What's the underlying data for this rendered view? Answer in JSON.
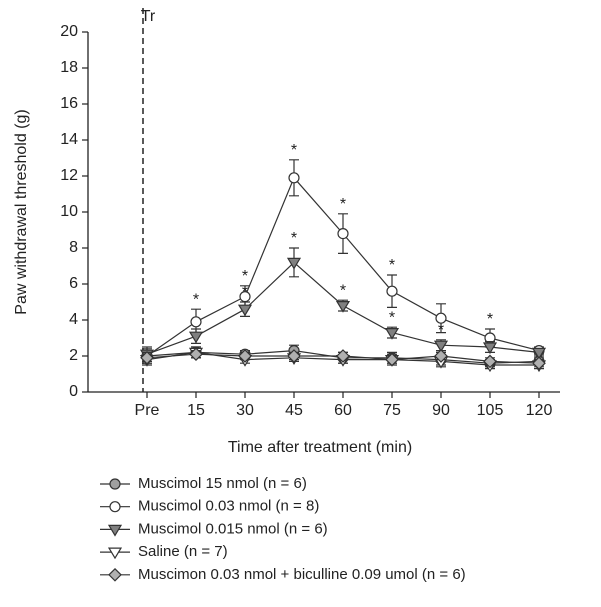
{
  "chart_data": {
    "type": "line",
    "y_label": "Paw withdrawal threshold (g)",
    "x_label": "Time after treatment (min)",
    "annotation": "Tr",
    "categories": [
      "Pre",
      "15",
      "30",
      "45",
      "60",
      "75",
      "90",
      "105",
      "120"
    ],
    "ylim": [
      0,
      20
    ],
    "yticks": [
      0,
      2,
      4,
      6,
      8,
      10,
      12,
      14,
      16,
      18,
      20
    ],
    "series": [
      {
        "name": "Muscimol 15 nmol (n = 6)",
        "marker": "circle",
        "color": "#333333",
        "fill": "#a0a0a0",
        "values": [
          2.0,
          2.2,
          2.1,
          2.3,
          1.9,
          1.9,
          1.8,
          1.6,
          1.7
        ],
        "errors": [
          0.3,
          0.3,
          0.2,
          0.3,
          0.3,
          0.3,
          0.3,
          0.2,
          0.2
        ]
      },
      {
        "name": "Muscimol 0.03 nmol (n = 8)",
        "marker": "circle",
        "color": "#333333",
        "fill": "#ffffff",
        "values": [
          2.0,
          3.9,
          5.3,
          11.9,
          8.8,
          5.6,
          4.1,
          3.0,
          2.3
        ],
        "errors": [
          0.4,
          0.7,
          0.6,
          1.0,
          1.1,
          0.9,
          0.8,
          0.5,
          0.2
        ],
        "asterisks": [
          null,
          "*",
          "*",
          "*",
          "*",
          "*",
          null,
          "*",
          null
        ]
      },
      {
        "name": "Muscimol 0.015 nmol (n = 6)",
        "marker": "triangle-down",
        "color": "#333333",
        "fill": "#808080",
        "values": [
          2.1,
          3.1,
          4.6,
          7.2,
          4.8,
          3.3,
          2.6,
          2.5,
          2.2
        ],
        "errors": [
          0.4,
          0.4,
          0.4,
          0.8,
          0.3,
          0.3,
          0.3,
          0.3,
          0.2
        ],
        "asterisks": [
          null,
          null,
          "*",
          "*",
          "*",
          "*",
          "*",
          null,
          null
        ]
      },
      {
        "name": "Saline (n = 7)",
        "marker": "triangle-down",
        "color": "#333333",
        "fill": "#ffffff",
        "values": [
          1.8,
          2.2,
          1.8,
          1.9,
          1.8,
          1.8,
          1.7,
          1.5,
          1.5
        ],
        "errors": [
          0.3,
          0.3,
          0.2,
          0.2,
          0.2,
          0.3,
          0.3,
          0.2,
          0.2
        ]
      },
      {
        "name": "Muscimon 0.03 nmol + biculline 0.09 umol (n = 6)",
        "marker": "diamond",
        "color": "#333333",
        "fill": "#b0b0b0",
        "values": [
          1.9,
          2.1,
          2.0,
          2.0,
          2.0,
          1.8,
          2.0,
          1.7,
          1.6
        ],
        "errors": [
          0.3,
          0.2,
          0.2,
          0.2,
          0.2,
          0.2,
          0.2,
          0.2,
          0.2
        ]
      }
    ]
  }
}
